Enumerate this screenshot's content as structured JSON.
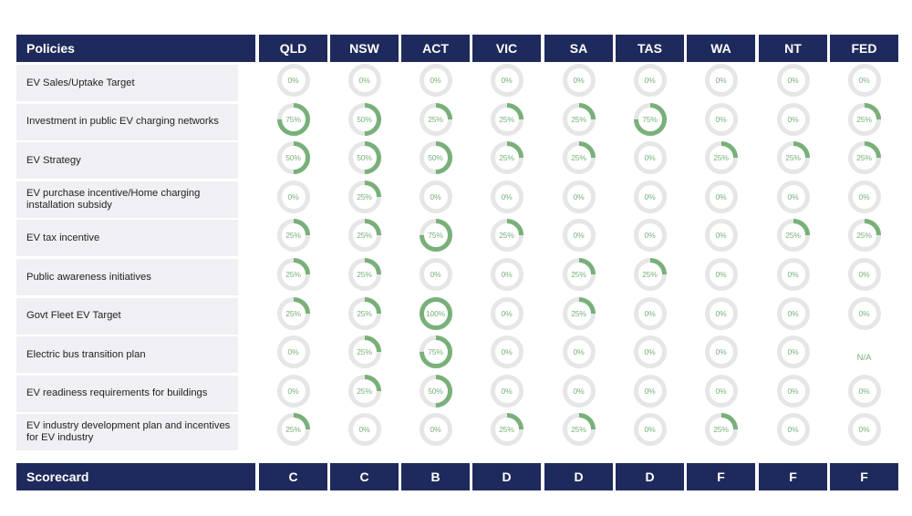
{
  "chart_data": {
    "type": "table",
    "header_label": "Policies",
    "columns": [
      "QLD",
      "NSW",
      "ACT",
      "VIC",
      "SA",
      "TAS",
      "WA",
      "NT",
      "FED"
    ],
    "rows": [
      {
        "label": "EV Sales/Uptake Target",
        "values": [
          0,
          0,
          0,
          0,
          0,
          0,
          0,
          0,
          0
        ]
      },
      {
        "label": "Investment in public EV charging networks",
        "values": [
          75,
          50,
          25,
          25,
          25,
          75,
          0,
          0,
          25
        ]
      },
      {
        "label": "EV Strategy",
        "values": [
          50,
          50,
          50,
          25,
          25,
          0,
          25,
          25,
          25
        ]
      },
      {
        "label": "EV purchase incentive/Home charging installation subsidy",
        "values": [
          0,
          25,
          0,
          0,
          0,
          0,
          0,
          0,
          0
        ]
      },
      {
        "label": "EV tax incentive",
        "values": [
          25,
          25,
          75,
          25,
          0,
          0,
          0,
          25,
          25
        ]
      },
      {
        "label": "Public awareness initiatives",
        "values": [
          25,
          25,
          0,
          0,
          25,
          25,
          0,
          0,
          0
        ]
      },
      {
        "label": "Govt Fleet EV Target",
        "values": [
          25,
          25,
          100,
          0,
          25,
          0,
          0,
          0,
          0
        ]
      },
      {
        "label": "Electric bus transition plan",
        "values": [
          0,
          25,
          75,
          0,
          0,
          0,
          0,
          0,
          null
        ]
      },
      {
        "label": "EV readiness requirements for buildings",
        "values": [
          0,
          25,
          50,
          0,
          0,
          0,
          0,
          0,
          0
        ]
      },
      {
        "label": "EV industry development plan and incentives for EV industry",
        "values": [
          25,
          0,
          0,
          25,
          25,
          0,
          25,
          0,
          0
        ]
      }
    ],
    "na_label": "N/A",
    "percent_suffix": "%",
    "footer_label": "Scorecard",
    "scorecard": [
      "C",
      "C",
      "B",
      "D",
      "D",
      "D",
      "F",
      "F",
      "F"
    ],
    "colors": {
      "header_bg": "#1f2a5c",
      "fill": "#79b07a",
      "track": "#e6e6e6",
      "row_bg": "#f0f0f4"
    }
  }
}
